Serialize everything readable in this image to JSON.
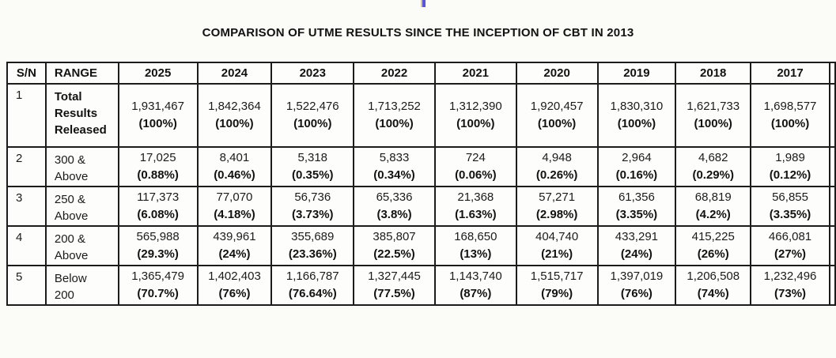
{
  "page": {
    "title": "COMPARISON OF UTME RESULTS SINCE THE INCEPTION OF CBT IN 2013"
  },
  "table": {
    "headers": [
      "S/N",
      "RANGE",
      "2025",
      "2024",
      "2023",
      "2022",
      "2021",
      "2020",
      "2019",
      "2018",
      "2017"
    ],
    "rows": [
      {
        "sn": "1",
        "range": "Total Results Released",
        "cells": [
          {
            "value": "1,931,467",
            "pct": "(100%)"
          },
          {
            "value": "1,842,364",
            "pct": "(100%)"
          },
          {
            "value": "1,522,476",
            "pct": "(100%)"
          },
          {
            "value": "1,713,252",
            "pct": "(100%)"
          },
          {
            "value": "1,312,390",
            "pct": "(100%)"
          },
          {
            "value": "1,920,457",
            "pct": "(100%)"
          },
          {
            "value": "1,830,310",
            "pct": "(100%)"
          },
          {
            "value": "1,621,733",
            "pct": "(100%)"
          },
          {
            "value": "1,698,577",
            "pct": "(100%)"
          }
        ]
      },
      {
        "sn": "2",
        "range": "300 & Above",
        "cells": [
          {
            "value": "17,025",
            "pct": "(0.88%)"
          },
          {
            "value": "8,401",
            "pct": "(0.46%)"
          },
          {
            "value": "5,318",
            "pct": "(0.35%)"
          },
          {
            "value": "5,833",
            "pct": "(0.34%)"
          },
          {
            "value": "724",
            "pct": "(0.06%)"
          },
          {
            "value": "4,948",
            "pct": "(0.26%)"
          },
          {
            "value": "2,964",
            "pct": "(0.16%)"
          },
          {
            "value": "4,682",
            "pct": "(0.29%)"
          },
          {
            "value": "1,989",
            "pct": "(0.12%)"
          }
        ]
      },
      {
        "sn": "3",
        "range": "250 & Above",
        "cells": [
          {
            "value": "117,373",
            "pct": "(6.08%)"
          },
          {
            "value": "77,070",
            "pct": "(4.18%)"
          },
          {
            "value": "56,736",
            "pct": "(3.73%)"
          },
          {
            "value": "65,336",
            "pct": "(3.8%)"
          },
          {
            "value": "21,368",
            "pct": "(1.63%)"
          },
          {
            "value": "57,271",
            "pct": "(2.98%)"
          },
          {
            "value": "61,356",
            "pct": "(3.35%)"
          },
          {
            "value": "68,819",
            "pct": "(4.2%)"
          },
          {
            "value": "56,855",
            "pct": "(3.35%)"
          }
        ]
      },
      {
        "sn": "4",
        "range": "200 & Above",
        "cells": [
          {
            "value": "565,988",
            "pct": "(29.3%)"
          },
          {
            "value": "439,961",
            "pct": "(24%)"
          },
          {
            "value": "355,689",
            "pct": "(23.36%)"
          },
          {
            "value": "385,807",
            "pct": "(22.5%)"
          },
          {
            "value": "168,650",
            "pct": "(13%)"
          },
          {
            "value": "404,740",
            "pct": "(21%)"
          },
          {
            "value": "433,291",
            "pct": "(24%)"
          },
          {
            "value": "415,225",
            "pct": "(26%)"
          },
          {
            "value": "466,081",
            "pct": "(27%)"
          }
        ]
      },
      {
        "sn": "5",
        "range": "Below 200",
        "cells": [
          {
            "value": "1,365,479",
            "pct": "(70.7%)"
          },
          {
            "value": "1,402,403",
            "pct": "(76%)"
          },
          {
            "value": "1,166,787",
            "pct": "(76.64%)"
          },
          {
            "value": "1,327,445",
            "pct": "(77.5%)"
          },
          {
            "value": "1,143,740",
            "pct": "(87%)"
          },
          {
            "value": "1,515,717",
            "pct": "(79%)"
          },
          {
            "value": "1,397,019",
            "pct": "(76%)"
          },
          {
            "value": "1,206,508",
            "pct": "(74%)"
          },
          {
            "value": "1,232,496",
            "pct": "(73%)"
          }
        ]
      }
    ]
  },
  "chart_data": {
    "type": "table",
    "title": "COMPARISON OF UTME RESULTS SINCE THE INCEPTION OF CBT IN 2013",
    "columns": [
      "S/N",
      "RANGE",
      "2025",
      "2024",
      "2023",
      "2022",
      "2021",
      "2020",
      "2019",
      "2018",
      "2017"
    ],
    "years": [
      2025,
      2024,
      2023,
      2022,
      2021,
      2020,
      2019,
      2018,
      2017
    ],
    "series": [
      {
        "name": "Total Results Released",
        "counts": [
          1931467,
          1842364,
          1522476,
          1713252,
          1312390,
          1920457,
          1830310,
          1621733,
          1698577
        ],
        "percentages": [
          "100%",
          "100%",
          "100%",
          "100%",
          "100%",
          "100%",
          "100%",
          "100%",
          "100%"
        ]
      },
      {
        "name": "300 & Above",
        "counts": [
          17025,
          8401,
          5318,
          5833,
          724,
          4948,
          2964,
          4682,
          1989
        ],
        "percentages": [
          "0.88%",
          "0.46%",
          "0.35%",
          "0.34%",
          "0.06%",
          "0.26%",
          "0.16%",
          "0.29%",
          "0.12%"
        ]
      },
      {
        "name": "250 & Above",
        "counts": [
          117373,
          77070,
          56736,
          65336,
          21368,
          57271,
          61356,
          68819,
          56855
        ],
        "percentages": [
          "6.08%",
          "4.18%",
          "3.73%",
          "3.8%",
          "1.63%",
          "2.98%",
          "3.35%",
          "4.2%",
          "3.35%"
        ]
      },
      {
        "name": "200 & Above",
        "counts": [
          565988,
          439961,
          355689,
          385807,
          168650,
          404740,
          433291,
          415225,
          466081
        ],
        "percentages": [
          "29.3%",
          "24%",
          "23.36%",
          "22.5%",
          "13%",
          "21%",
          "24%",
          "26%",
          "27%"
        ]
      },
      {
        "name": "Below 200",
        "counts": [
          1365479,
          1402403,
          1166787,
          1327445,
          1143740,
          1515717,
          1397019,
          1206508,
          1232496
        ],
        "percentages": [
          "70.7%",
          "76%",
          "76.64%",
          "77.5%",
          "87%",
          "79%",
          "76%",
          "74%",
          "73%"
        ]
      }
    ]
  },
  "decor": {
    "cursor_color": "#5d55d4",
    "border_color": "#1c1c1c",
    "background_color": "#fbfbf8"
  }
}
